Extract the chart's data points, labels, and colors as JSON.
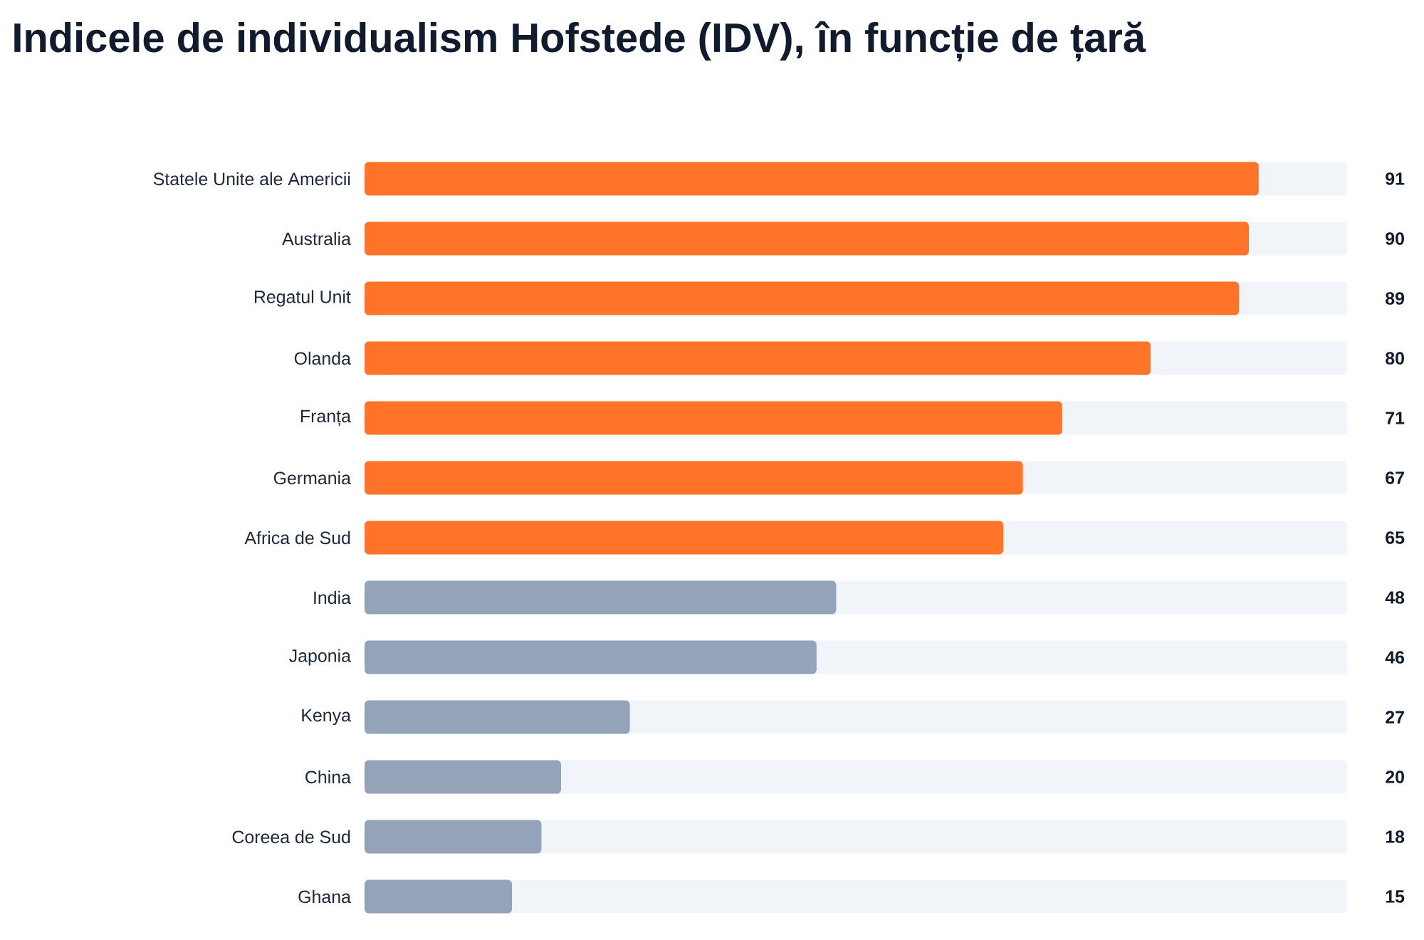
{
  "chart_data": {
    "type": "bar",
    "orientation": "horizontal",
    "title": "Indicele de individualism Hofstede (IDV), în funcție de țară",
    "categories": [
      "Statele Unite ale Americii",
      "Australia",
      "Regatul Unit",
      "Olanda",
      "Franța",
      "Germania",
      "Africa de Sud",
      "India",
      "Japonia",
      "Kenya",
      "China",
      "Coreea de Sud",
      "Ghana"
    ],
    "values": [
      91,
      90,
      89,
      80,
      71,
      67,
      65,
      48,
      46,
      27,
      20,
      18,
      15
    ],
    "colors": [
      "#ff7428",
      "#ff7428",
      "#ff7428",
      "#ff7428",
      "#ff7428",
      "#ff7428",
      "#ff7428",
      "#94a3b8",
      "#94a3b8",
      "#94a3b8",
      "#94a3b8",
      "#94a3b8",
      "#94a3b8"
    ],
    "xlim": [
      0,
      100
    ],
    "data_labels": true,
    "tick_labels": "y"
  }
}
